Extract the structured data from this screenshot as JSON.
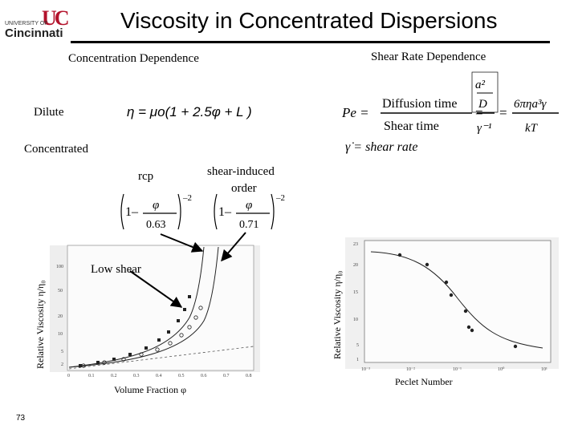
{
  "header": {
    "title": "Viscosity in Concentrated Dispersions",
    "logo_top": "UNIVERSITY OF",
    "logo_bottom": "Cincinnati",
    "logo_mark": "UC"
  },
  "sections": {
    "concentration": "Concentration Dependence",
    "shear_rate": "Shear Rate Dependence",
    "dilute": "Dilute",
    "concentrated": "Concentrated"
  },
  "labels": {
    "rcp": "rcp",
    "shear_induced": "shear-induced",
    "order": "order",
    "low_shear": "Low shear",
    "rcp_value": "0.63",
    "order_value": "0.71"
  },
  "formulas": {
    "dilute": "η = μo(1 + 2.5φ + L )",
    "peclet_lhs": "Pe =",
    "diffusion_time": "Diffusion time",
    "shear_time": "Shear time",
    "a2_over_d": "a²/D",
    "gamma_inv": "γ⁻¹",
    "rhs_num": "6πηa³γ",
    "rhs_den": "kT",
    "shear_rate_def": "γ̇ = shear  rate"
  },
  "plot_left": {
    "ylabel": "Relative Viscosity η/η₀",
    "xlabel": "Volume Fraction φ",
    "yticks": [
      "100",
      "50",
      "20",
      "10",
      "5",
      "2",
      "1"
    ],
    "xticks": [
      "0",
      "0.1",
      "0.2",
      "0.3",
      "0.4",
      "0.5",
      "0.6",
      "0.7",
      "0.8"
    ]
  },
  "plot_right": {
    "ylabel": "Relative Viscosity η/η₀",
    "xlabel": "Peclet Number",
    "yticks": [
      "23",
      "20",
      "15",
      "10",
      "5",
      "1"
    ],
    "xticks": [
      "10⁻³",
      "10⁻²",
      "10⁻¹",
      "10⁰",
      "10¹"
    ]
  },
  "footer": {
    "page_number": "73"
  }
}
